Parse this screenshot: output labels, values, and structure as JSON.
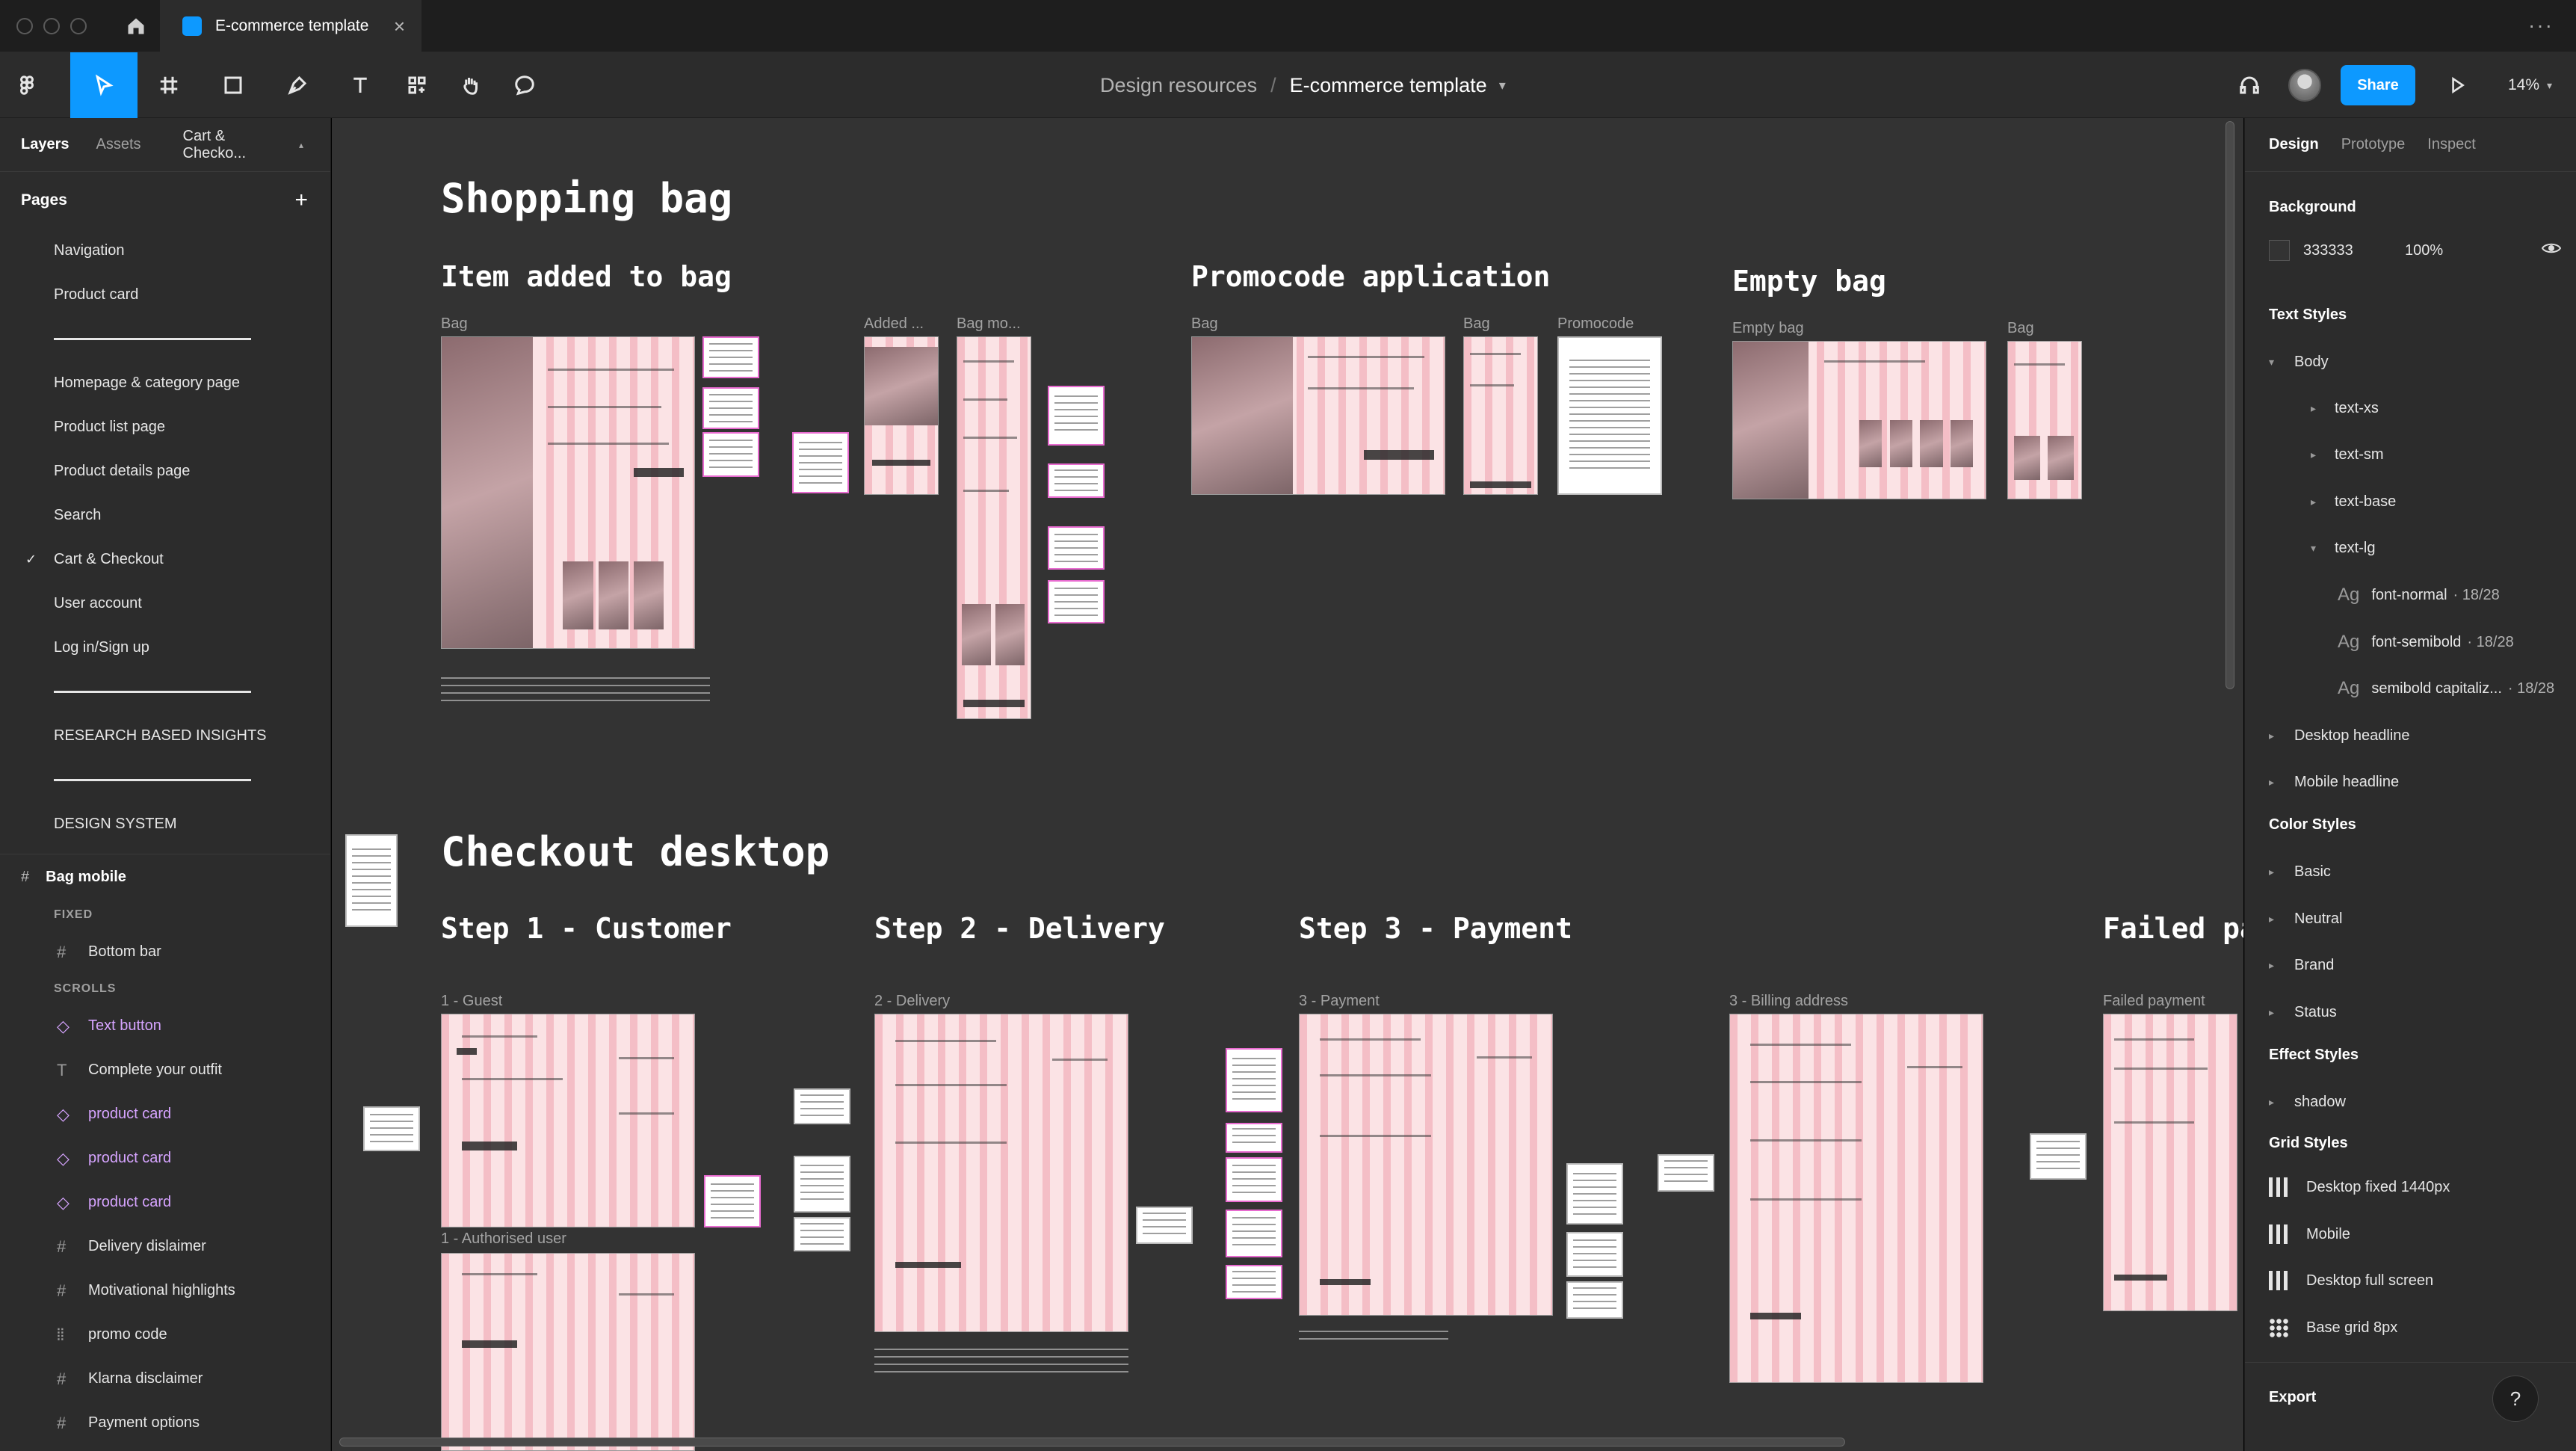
{
  "window": {
    "file_name": "E-commerce template",
    "close_glyph": "×",
    "more_glyph": "···"
  },
  "toolbar": {
    "breadcrumb_parent": "Design resources",
    "breadcrumb_sep": "/",
    "breadcrumb_file": "E-commerce template",
    "share_label": "Share",
    "zoom": "14%"
  },
  "left_panel": {
    "tabs": [
      "Layers",
      "Assets"
    ],
    "current_page": "Cart & Checko...",
    "pages_title": "Pages",
    "add_glyph": "+",
    "pages": [
      {
        "label": "Navigation"
      },
      {
        "label": "Product card"
      },
      {
        "divider": true
      },
      {
        "label": "Homepage & category page"
      },
      {
        "label": "Product list page"
      },
      {
        "label": "Product details page"
      },
      {
        "label": "Search"
      },
      {
        "label": "Cart & Checkout",
        "selected": true
      },
      {
        "label": "User account"
      },
      {
        "label": "Log in/Sign up"
      },
      {
        "divider": true
      },
      {
        "label": "RESEARCH BASED INSIGHTS"
      },
      {
        "divider": true
      },
      {
        "label": "DESIGN SYSTEM"
      }
    ],
    "frame_name": "Bag mobile",
    "groups": {
      "fixed": "FIXED",
      "scrolls": "SCROLLS"
    },
    "fixed_layers": [
      {
        "label": "Bottom bar",
        "icon": "frame-icon"
      }
    ],
    "scroll_layers": [
      {
        "label": "Text button",
        "icon": "component-icon"
      },
      {
        "label": "Complete your outfit",
        "icon": "text-icon"
      },
      {
        "label": "product card",
        "icon": "component-icon"
      },
      {
        "label": "product card",
        "icon": "component-icon"
      },
      {
        "label": "product card",
        "icon": "component-icon"
      },
      {
        "label": "Delivery dislaimer",
        "icon": "frame-icon"
      },
      {
        "label": "Motivational highlights",
        "icon": "frame-icon"
      },
      {
        "label": "promo code",
        "icon": "grid-icon"
      },
      {
        "label": "Klarna disclaimer",
        "icon": "frame-icon"
      },
      {
        "label": "Payment options",
        "icon": "frame-icon"
      }
    ]
  },
  "canvas": {
    "shopping_bag": {
      "title": "Shopping bag",
      "item_added": "Item added to bag",
      "promocode": "Promocode application",
      "empty_bag": "Empty bag",
      "labels": [
        "Bag",
        "Added ...",
        "Bag mo...",
        "Bag",
        "Bag",
        "Promocode",
        "Empty bag",
        "Bag"
      ]
    },
    "checkout": {
      "title": "Checkout desktop",
      "step1": "Step 1 - Customer",
      "step2": "Step 2 - Delivery",
      "step3": "Step 3 - Payment",
      "failed": "Failed pa",
      "labels": [
        "1 - Guest",
        "1 - Authorised user",
        "2 - Delivery",
        "3 - Payment",
        "3 - Billing address",
        "Failed payment"
      ]
    }
  },
  "right_panel": {
    "tabs": [
      "Design",
      "Prototype",
      "Inspect"
    ],
    "background_title": "Background",
    "background_hex": "333333",
    "background_opacity": "100%",
    "text_styles_title": "Text Styles",
    "body_group": "Body",
    "body_items": [
      "text-xs",
      "text-sm",
      "text-base",
      "text-lg"
    ],
    "text_lg_items": [
      {
        "name": "font-normal",
        "meta": "· 18/28"
      },
      {
        "name": "font-semibold",
        "meta": "· 18/28"
      },
      {
        "name": "semibold capitaliz...",
        "meta": "· 18/28"
      }
    ],
    "text_groups": [
      "Desktop headline",
      "Mobile headline"
    ],
    "color_styles_title": "Color Styles",
    "color_groups": [
      "Basic",
      "Neutral",
      "Brand",
      "Status"
    ],
    "effect_styles_title": "Effect Styles",
    "effect_items": [
      "shadow"
    ],
    "grid_styles_title": "Grid Styles",
    "grid_items": [
      "Desktop fixed 1440px",
      "Mobile",
      "Desktop full screen",
      "Base grid 8px"
    ],
    "export_title": "Export",
    "help_glyph": "?"
  },
  "colors": {
    "accent": "#0d99ff",
    "canvas": "#333333",
    "panel": "#2c2c2c",
    "component": "#d6a4ff",
    "frame_pink": "#fbe3e5"
  }
}
